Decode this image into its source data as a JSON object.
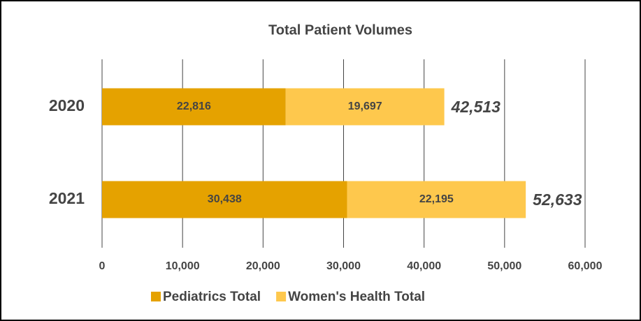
{
  "chart_data": {
    "type": "stacked_barh",
    "title": "Total Patient Volumes",
    "categories": [
      "2020",
      "2021"
    ],
    "series": [
      {
        "name": "Pediatrics Total",
        "color": "#e5a200",
        "values": [
          22816,
          30438
        ],
        "value_labels": [
          "22,816",
          "30,438"
        ]
      },
      {
        "name": "Women's Health Total",
        "color": "#fec84d",
        "values": [
          19697,
          22195
        ],
        "value_labels": [
          "19,697",
          "22,195"
        ]
      }
    ],
    "totals": [
      42513,
      52633
    ],
    "total_labels": [
      "42,513",
      "52,633"
    ],
    "xlim": [
      0,
      60000
    ],
    "xticks": [
      0,
      {
        "value": 10000,
        "label": "10,000"
      },
      {
        "value": 20000,
        "label": "20,000"
      },
      {
        "value": 30000,
        "label": "30,000"
      },
      {
        "value": 40000,
        "label": "40,000"
      },
      {
        "value": 50000,
        "label": "50,000"
      },
      {
        "value": 60000,
        "label": "60,000"
      }
    ],
    "grid": true,
    "legend": "bottom"
  }
}
